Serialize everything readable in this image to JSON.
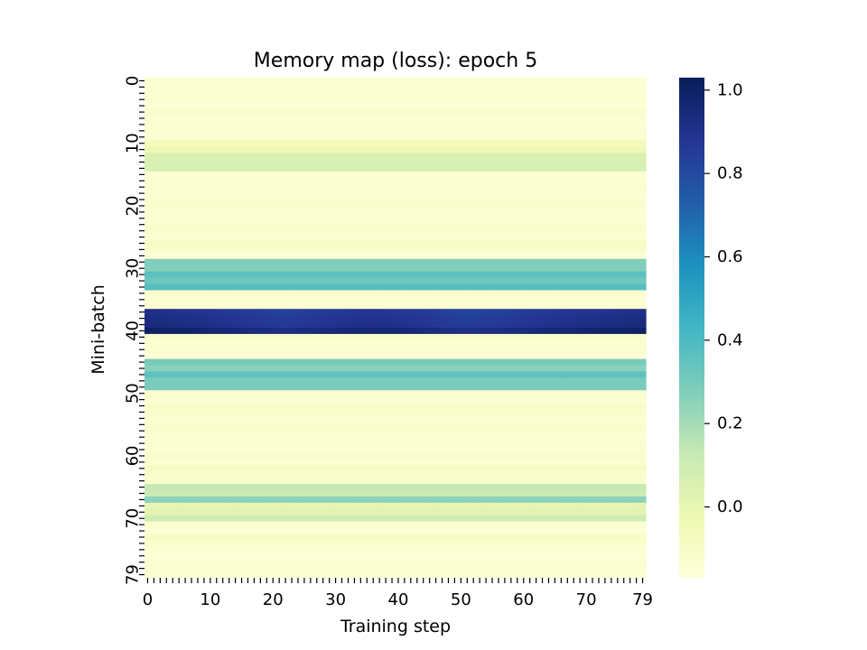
{
  "chart_data": {
    "type": "heatmap",
    "title": "Memory map (loss): epoch 5",
    "xlabel": "Training step",
    "ylabel": "Mini-batch",
    "x_range": [
      0,
      79
    ],
    "y_range": [
      0,
      79
    ],
    "x_tick_labels": [
      "0",
      "10",
      "20",
      "30",
      "40",
      "50",
      "60",
      "70",
      "79"
    ],
    "y_tick_labels": [
      "0",
      "10",
      "20",
      "30",
      "40",
      "50",
      "60",
      "70",
      "79"
    ],
    "colormap": "YlGnBu",
    "colormap_stops": [
      "#ffffd9",
      "#edf8b1",
      "#c7e9b4",
      "#7fcdbb",
      "#41b6c4",
      "#1d91c0",
      "#225ea8",
      "#253494",
      "#081d58"
    ],
    "value_range": [
      -0.17,
      1.03
    ],
    "colorbar_ticks": [
      {
        "value": 0.0,
        "label": "0.0"
      },
      {
        "value": 0.2,
        "label": "0.2"
      },
      {
        "value": 0.4,
        "label": "0.4"
      },
      {
        "value": 0.6,
        "label": "0.6"
      },
      {
        "value": 0.8,
        "label": "0.8"
      },
      {
        "value": 1.0,
        "label": "1.0"
      }
    ],
    "row_loss_values": [
      -0.14,
      -0.15,
      -0.13,
      -0.14,
      -0.16,
      -0.12,
      -0.14,
      -0.15,
      -0.13,
      -0.14,
      -0.06,
      -0.03,
      0.06,
      0.06,
      0.07,
      -0.15,
      -0.14,
      -0.13,
      -0.15,
      -0.14,
      -0.12,
      -0.15,
      -0.14,
      -0.13,
      -0.12,
      -0.14,
      -0.1,
      -0.12,
      -0.15,
      0.28,
      0.27,
      0.36,
      0.32,
      0.38,
      -0.13,
      -0.15,
      -0.14,
      0.91,
      0.93,
      0.94,
      1.0,
      -0.12,
      -0.14,
      -0.13,
      -0.15,
      0.3,
      0.26,
      0.36,
      0.29,
      0.29,
      -0.13,
      -0.14,
      -0.11,
      -0.13,
      -0.14,
      -0.12,
      -0.13,
      -0.15,
      -0.13,
      -0.14,
      -0.12,
      -0.14,
      -0.09,
      -0.13,
      -0.12,
      0.13,
      0.11,
      0.25,
      0.01,
      0.02,
      0.09,
      -0.14,
      -0.15,
      -0.1,
      -0.12,
      -0.14,
      -0.16,
      -0.13,
      -0.14,
      -0.15
    ],
    "hot_row_variation_profile": [
      0,
      0.02,
      0.05,
      0.08,
      0.05,
      0.03,
      0.05,
      0.09,
      0.07,
      0.04,
      0.02,
      0
    ]
  }
}
